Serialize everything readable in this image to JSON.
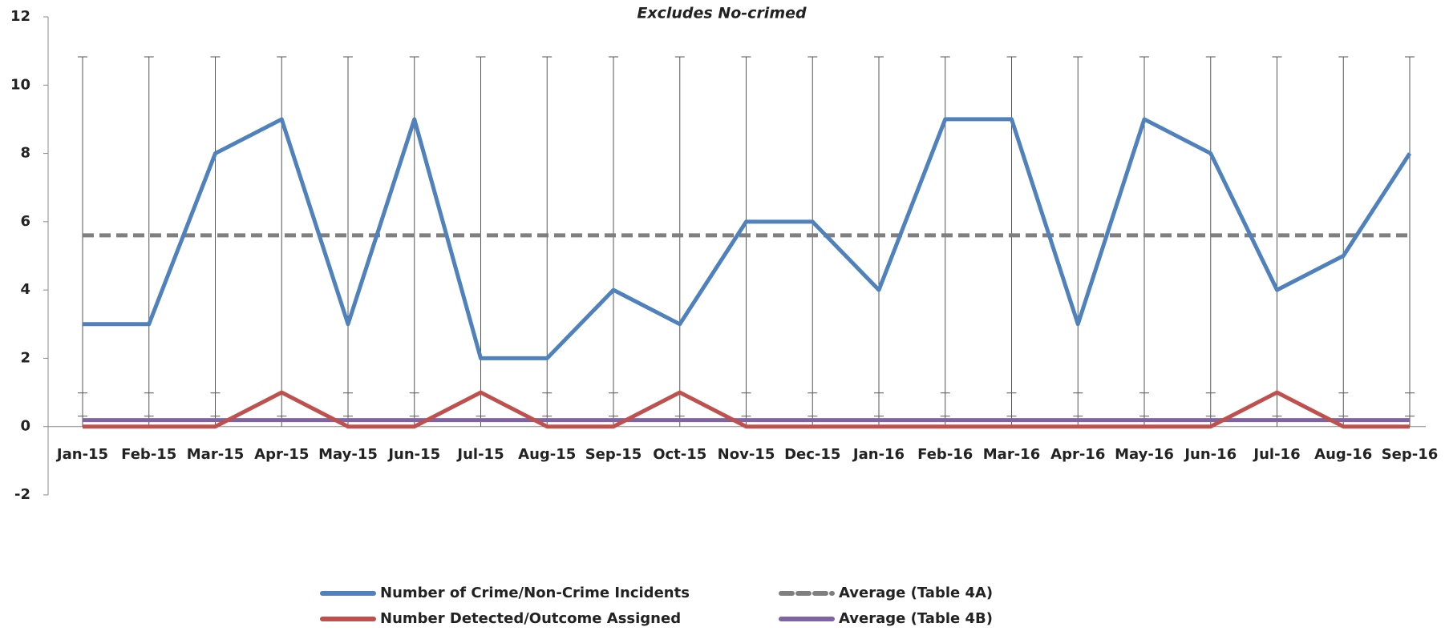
{
  "chart_data": {
    "type": "line",
    "title": "Excludes No-crimed",
    "categories": [
      "Jan-15",
      "Feb-15",
      "Mar-15",
      "Apr-15",
      "May-15",
      "Jun-15",
      "Jul-15",
      "Aug-15",
      "Sep-15",
      "Oct-15",
      "Nov-15",
      "Dec-15",
      "Jan-16",
      "Feb-16",
      "Mar-16",
      "Apr-16",
      "May-16",
      "Jun-16",
      "Jul-16",
      "Aug-16",
      "Sep-16"
    ],
    "series": [
      {
        "name": "Number of Crime/Non-Crime Incidents",
        "color": "#4f81bd",
        "style": "solid",
        "values": [
          3,
          3,
          8,
          9,
          3,
          9,
          2,
          2,
          4,
          3,
          6,
          6,
          4,
          9,
          9,
          3,
          9,
          8,
          4,
          5,
          8
        ]
      },
      {
        "name": "Number Detected/Outcome Assigned",
        "color": "#c0504d",
        "style": "solid",
        "values": [
          0,
          0,
          0,
          1,
          0,
          0,
          1,
          0,
          0,
          1,
          0,
          0,
          0,
          0,
          0,
          0,
          0,
          0,
          1,
          0,
          0
        ]
      },
      {
        "name": "Average (Table 4A)",
        "color": "#7f7f7f",
        "style": "dashed",
        "values": [
          5.6,
          5.6,
          5.6,
          5.6,
          5.6,
          5.6,
          5.6,
          5.6,
          5.6,
          5.6,
          5.6,
          5.6,
          5.6,
          5.6,
          5.6,
          5.6,
          5.6,
          5.6,
          5.6,
          5.6,
          5.6
        ]
      },
      {
        "name": "Average (Table 4B)",
        "color": "#8064a2",
        "style": "solid",
        "values": [
          0.19,
          0.19,
          0.19,
          0.19,
          0.19,
          0.19,
          0.19,
          0.19,
          0.19,
          0.19,
          0.19,
          0.19,
          0.19,
          0.19,
          0.19,
          0.19,
          0.19,
          0.19,
          0.19,
          0.19,
          0.19
        ]
      }
    ],
    "ylim": [
      -2,
      12
    ],
    "yticks": [
      -2,
      0,
      2,
      4,
      6,
      8,
      10,
      12
    ]
  }
}
